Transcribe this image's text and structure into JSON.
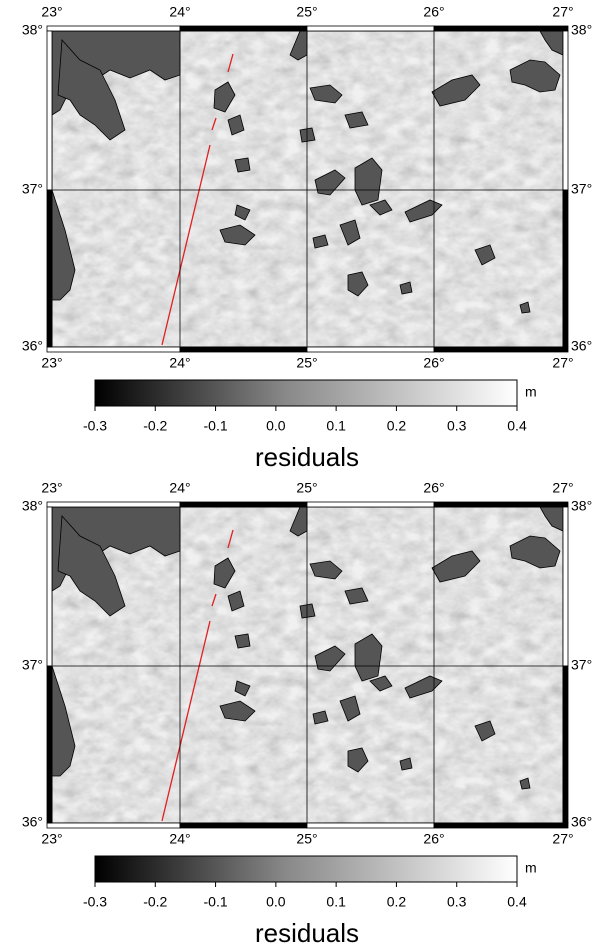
{
  "panels": [
    {
      "lon_labels_top": [
        "23°",
        "24°",
        "25°",
        "26°",
        "27°"
      ],
      "lon_labels_bottom": [
        "23°",
        "24°",
        "25°",
        "26°",
        "27°"
      ],
      "lat_labels_left": [
        "38°",
        "37°",
        "36°"
      ],
      "lat_labels_right": [
        "38°",
        "37°",
        "36°"
      ],
      "colorbar": {
        "ticks": [
          "-0.3",
          "-0.2",
          "-0.1",
          "0.0",
          "0.1",
          "0.2",
          "0.3",
          "0.4"
        ],
        "unit": "m"
      },
      "caption": "residuals"
    },
    {
      "lon_labels_top": [
        "23°",
        "24°",
        "25°",
        "26°",
        "27°"
      ],
      "lon_labels_bottom": [
        "23°",
        "24°",
        "25°",
        "26°",
        "27°"
      ],
      "lat_labels_left": [
        "38°",
        "37°",
        "36°"
      ],
      "lat_labels_right": [
        "38°",
        "37°",
        "36°"
      ],
      "colorbar": {
        "ticks": [
          "-0.3",
          "-0.2",
          "-0.1",
          "0.0",
          "0.1",
          "0.2",
          "0.3",
          "0.4"
        ],
        "unit": "m"
      },
      "caption": "residuals"
    }
  ]
}
